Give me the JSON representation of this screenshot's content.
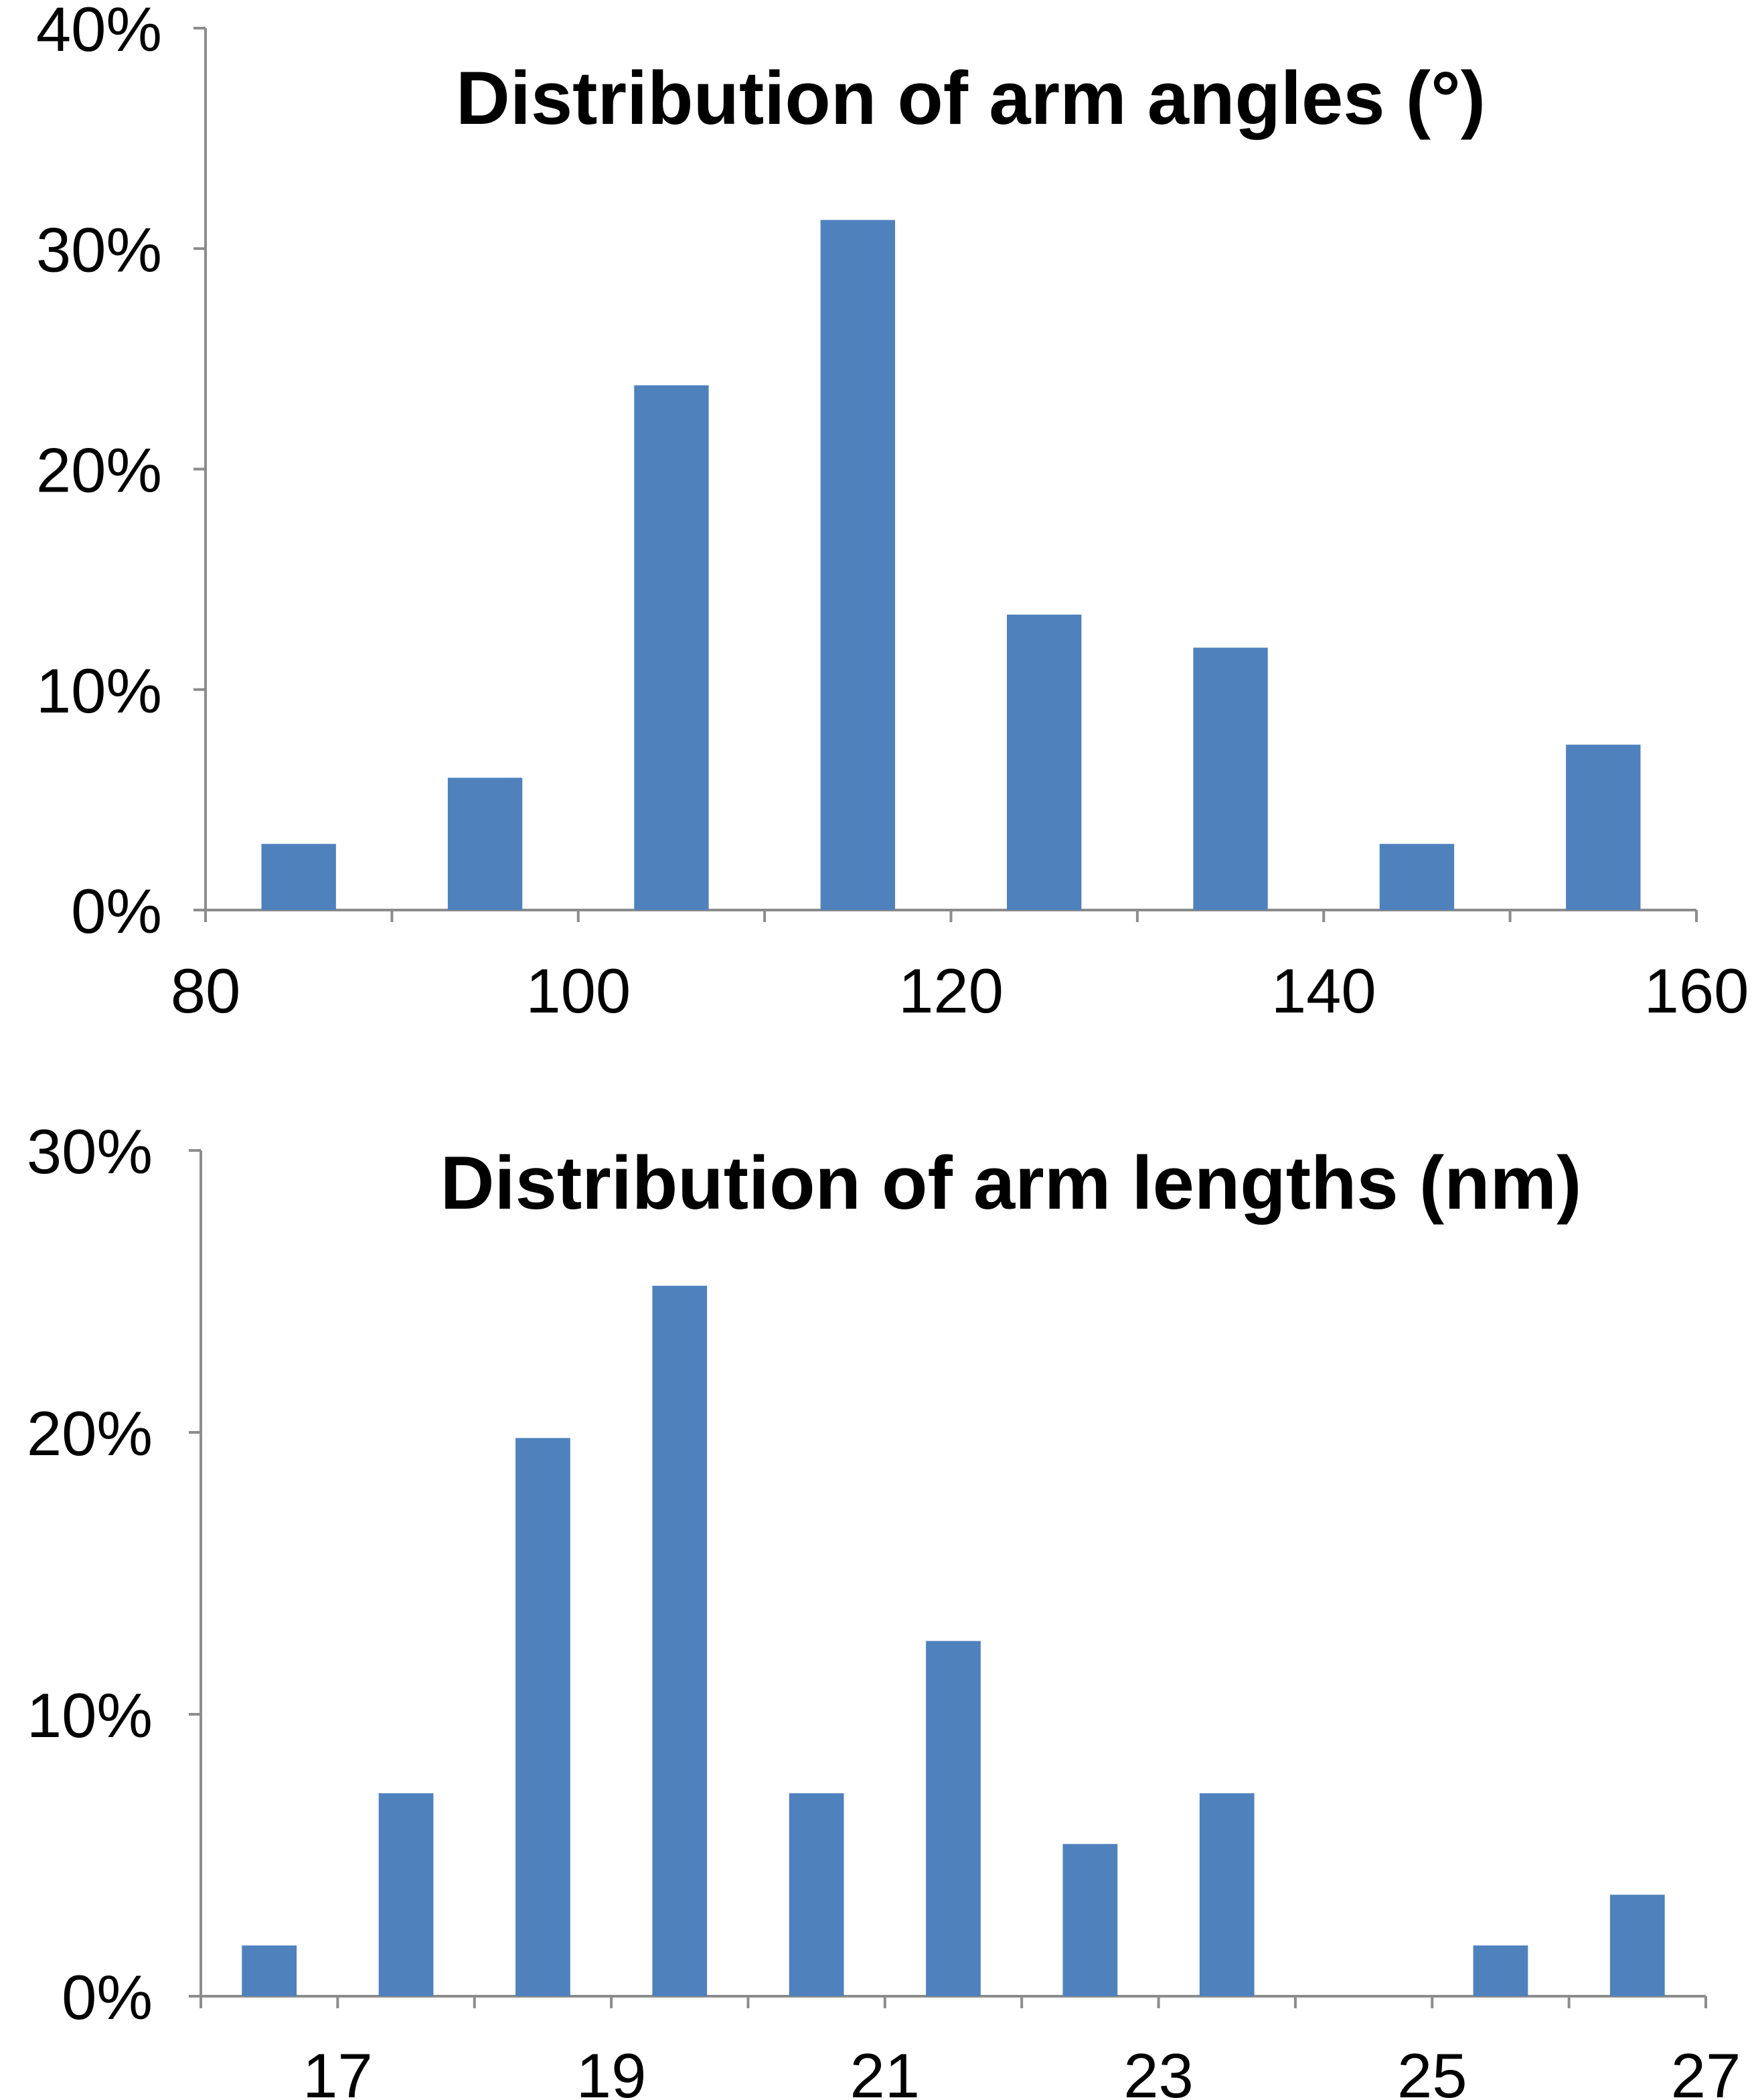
{
  "chart_data": [
    {
      "type": "bar",
      "title": "Distribution of arm angles (°)",
      "xlabel": "",
      "ylabel": "",
      "x_ticks": [
        "80",
        "100",
        "120",
        "140",
        "160"
      ],
      "y_ticks": [
        "0%",
        "10%",
        "20%",
        "30%",
        "40%"
      ],
      "xlim": [
        80,
        160
      ],
      "ylim": [
        0,
        40
      ],
      "bin_width": 10,
      "x": [
        85,
        95,
        105,
        115,
        125,
        135,
        145,
        155
      ],
      "values": [
        3,
        6,
        23.8,
        31.3,
        13.4,
        11.9,
        3,
        7.5
      ],
      "value_unit": "%",
      "grid": false,
      "legend": "none",
      "color": "#4f81bd"
    },
    {
      "type": "bar",
      "title": "Distribution of arm lengths (nm)",
      "xlabel": "",
      "ylabel": "",
      "x_ticks": [
        "17",
        "19",
        "21",
        "23",
        "25",
        "27"
      ],
      "y_ticks": [
        "0%",
        "10%",
        "20%",
        "30%"
      ],
      "xlim": [
        16,
        27
      ],
      "ylim": [
        0,
        30
      ],
      "bin_width": 1,
      "x": [
        16.5,
        17.5,
        18.5,
        19.5,
        20.5,
        21.5,
        22.5,
        23.5,
        24.5,
        25.5,
        26.5
      ],
      "values": [
        1.8,
        7.2,
        19.8,
        25.2,
        7.2,
        12.6,
        5.4,
        7.2,
        0,
        1.8,
        3.6
      ],
      "value_unit": "%",
      "grid": false,
      "legend": "none",
      "color": "#4f81bd"
    }
  ]
}
